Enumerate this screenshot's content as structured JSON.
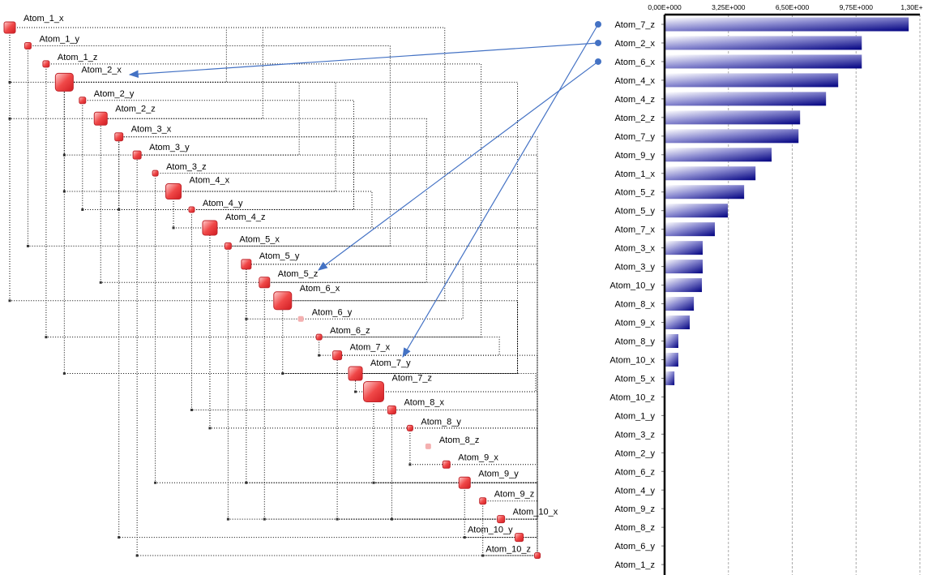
{
  "diagram": {
    "nodes": [
      {
        "name": "Atom_1_x",
        "weight": 4.63
      },
      {
        "name": "Atom_1_y",
        "weight": 0
      },
      {
        "name": "Atom_1_z",
        "weight": 0
      },
      {
        "name": "Atom_2_x",
        "weight": 10.04
      },
      {
        "name": "Atom_2_y",
        "weight": 0
      },
      {
        "name": "Atom_2_z",
        "weight": 6.9
      },
      {
        "name": "Atom_3_x",
        "weight": 1.94
      },
      {
        "name": "Atom_3_y",
        "weight": 1.94
      },
      {
        "name": "Atom_3_z",
        "weight": 0
      },
      {
        "name": "Atom_4_x",
        "weight": 8.84
      },
      {
        "name": "Atom_4_y",
        "weight": 0
      },
      {
        "name": "Atom_4_z",
        "weight": 8.22
      },
      {
        "name": "Atom_5_x",
        "weight": 0.5
      },
      {
        "name": "Atom_5_y",
        "weight": 3.22
      },
      {
        "name": "Atom_5_z",
        "weight": 4.05
      },
      {
        "name": "Atom_6_x",
        "weight": 10.04
      },
      {
        "name": "Atom_6_y",
        "weight": 0,
        "faded": true
      },
      {
        "name": "Atom_6_z",
        "weight": 0
      },
      {
        "name": "Atom_7_x",
        "weight": 2.56
      },
      {
        "name": "Atom_7_y",
        "weight": 6.82
      },
      {
        "name": "Atom_7_z",
        "weight": 12.43
      },
      {
        "name": "Atom_8_x",
        "weight": 1.49
      },
      {
        "name": "Atom_8_y",
        "weight": 0.7
      },
      {
        "name": "Atom_8_z",
        "weight": 0,
        "faded": true
      },
      {
        "name": "Atom_9_x",
        "weight": 1.28
      },
      {
        "name": "Atom_9_y",
        "weight": 5.45
      },
      {
        "name": "Atom_9_z",
        "weight": 0
      },
      {
        "name": "Atom_10_x",
        "weight": 0.7
      },
      {
        "name": "Atom_10_y",
        "weight": 1.9
      },
      {
        "name": "Atom_10_z",
        "weight": 0.04
      }
    ],
    "edges": [
      [
        "Atom_1_x",
        "Atom_2_x"
      ],
      [
        "Atom_1_x",
        "Atom_2_z"
      ],
      [
        "Atom_1_x",
        "Atom_6_x"
      ],
      [
        "Atom_1_y",
        "Atom_5_x"
      ],
      [
        "Atom_1_z",
        "Atom_6_z"
      ],
      [
        "Atom_2_x",
        "Atom_3_y"
      ],
      [
        "Atom_2_x",
        "Atom_4_x"
      ],
      [
        "Atom_2_x",
        "Atom_7_y"
      ],
      [
        "Atom_2_y",
        "Atom_4_y"
      ],
      [
        "Atom_2_z",
        "Atom_5_z"
      ],
      [
        "Atom_3_x",
        "Atom_10_y"
      ],
      [
        "Atom_3_y",
        "Atom_10_z"
      ],
      [
        "Atom_3_z",
        "Atom_9_y"
      ],
      [
        "Atom_4_x",
        "Atom_4_z"
      ],
      [
        "Atom_4_y",
        "Atom_8_x"
      ],
      [
        "Atom_4_z",
        "Atom_8_y"
      ],
      [
        "Atom_5_x",
        "Atom_10_x"
      ],
      [
        "Atom_5_y",
        "Atom_9_y"
      ],
      [
        "Atom_5_z",
        "Atom_10_x"
      ],
      [
        "Atom_6_x",
        "Atom_7_y"
      ],
      [
        "Atom_7_x",
        "Atom_10_x"
      ],
      [
        "Atom_7_y",
        "Atom_7_z"
      ],
      [
        "Atom_7_z",
        "Atom_9_y"
      ],
      [
        "Atom_8_x",
        "Atom_10_x"
      ],
      [
        "Atom_8_y",
        "Atom_9_x"
      ],
      [
        "Atom_9_y",
        "Atom_10_y"
      ],
      [
        "Atom_9_z",
        "Atom_10_z"
      ],
      [
        "Atom_6_z",
        "Atom_7_x"
      ],
      [
        "Atom_5_y",
        "Atom_6_y"
      ],
      [
        "Atom_3_x",
        "Atom_4_y"
      ]
    ],
    "highlight_color": "#4472c4",
    "node_color": "#e8343a"
  },
  "chart_data": {
    "type": "bar",
    "orientation": "horizontal",
    "categories": [
      "Atom_7_z",
      "Atom_2_x",
      "Atom_6_x",
      "Atom_4_x",
      "Atom_4_z",
      "Atom_2_z",
      "Atom_7_y",
      "Atom_9_y",
      "Atom_1_x",
      "Atom_5_z",
      "Atom_5_y",
      "Atom_7_x",
      "Atom_3_x",
      "Atom_3_y",
      "Atom_10_y",
      "Atom_8_x",
      "Atom_9_x",
      "Atom_8_y",
      "Atom_10_x",
      "Atom_5_x",
      "Atom_10_z",
      "Atom_1_y",
      "Atom_3_z",
      "Atom_2_y",
      "Atom_6_z",
      "Atom_4_y",
      "Atom_9_z",
      "Atom_8_z",
      "Atom_6_y",
      "Atom_1_z"
    ],
    "values": [
      12.43,
      10.04,
      10.04,
      8.84,
      8.22,
      6.9,
      6.82,
      5.45,
      4.63,
      4.05,
      3.22,
      2.56,
      1.94,
      1.94,
      1.9,
      1.49,
      1.28,
      0.7,
      0.7,
      0.5,
      0.04,
      0,
      0,
      0,
      0,
      0,
      0,
      0,
      0,
      0
    ],
    "xticks": [
      "0,00E+000",
      "3,25E+000",
      "6,50E+000",
      "9,75E+000",
      "1,30E+"
    ],
    "xtick_values": [
      0,
      3.25,
      6.5,
      9.75,
      13
    ],
    "xlim": [
      0,
      13
    ],
    "axis_position": "top",
    "grid": true,
    "bar_color": "#000080",
    "highlighted": [
      "Atom_7_z",
      "Atom_2_x",
      "Atom_6_x"
    ]
  },
  "arrows": [
    {
      "from": "Atom_2_x",
      "to": "Atom_2_x"
    },
    {
      "from": "Atom_6_x",
      "to": "Atom_5_z"
    },
    {
      "from": "Atom_7_z",
      "to": "Atom_7_y"
    }
  ]
}
